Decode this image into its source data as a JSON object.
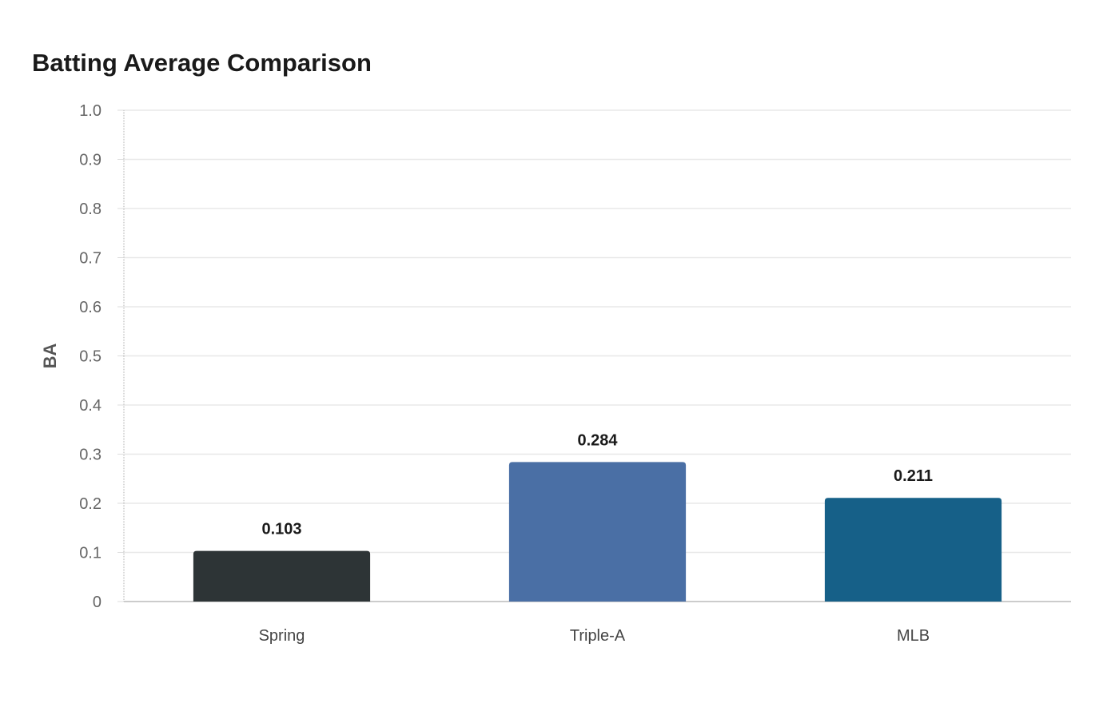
{
  "chart_data": {
    "type": "bar",
    "title": "Batting Average Comparison",
    "xlabel": "",
    "ylabel": "BA",
    "categories": [
      "Spring",
      "Triple-A",
      "MLB"
    ],
    "values": [
      0.103,
      0.284,
      0.211
    ],
    "value_labels": [
      "0.103",
      "0.284",
      "0.211"
    ],
    "colors": [
      "#2d3436",
      "#4a6fa5",
      "#166088"
    ],
    "ylim": [
      0,
      1.0
    ],
    "yticks": [
      0,
      0.1,
      0.2,
      0.3,
      0.4,
      0.5,
      0.6,
      0.7,
      0.8,
      0.9,
      1.0
    ],
    "ytick_labels": [
      "0",
      "0.1",
      "0.2",
      "0.3",
      "0.4",
      "0.5",
      "0.6",
      "0.7",
      "0.8",
      "0.9",
      "1.0"
    ],
    "grid": true,
    "legend": "none"
  }
}
